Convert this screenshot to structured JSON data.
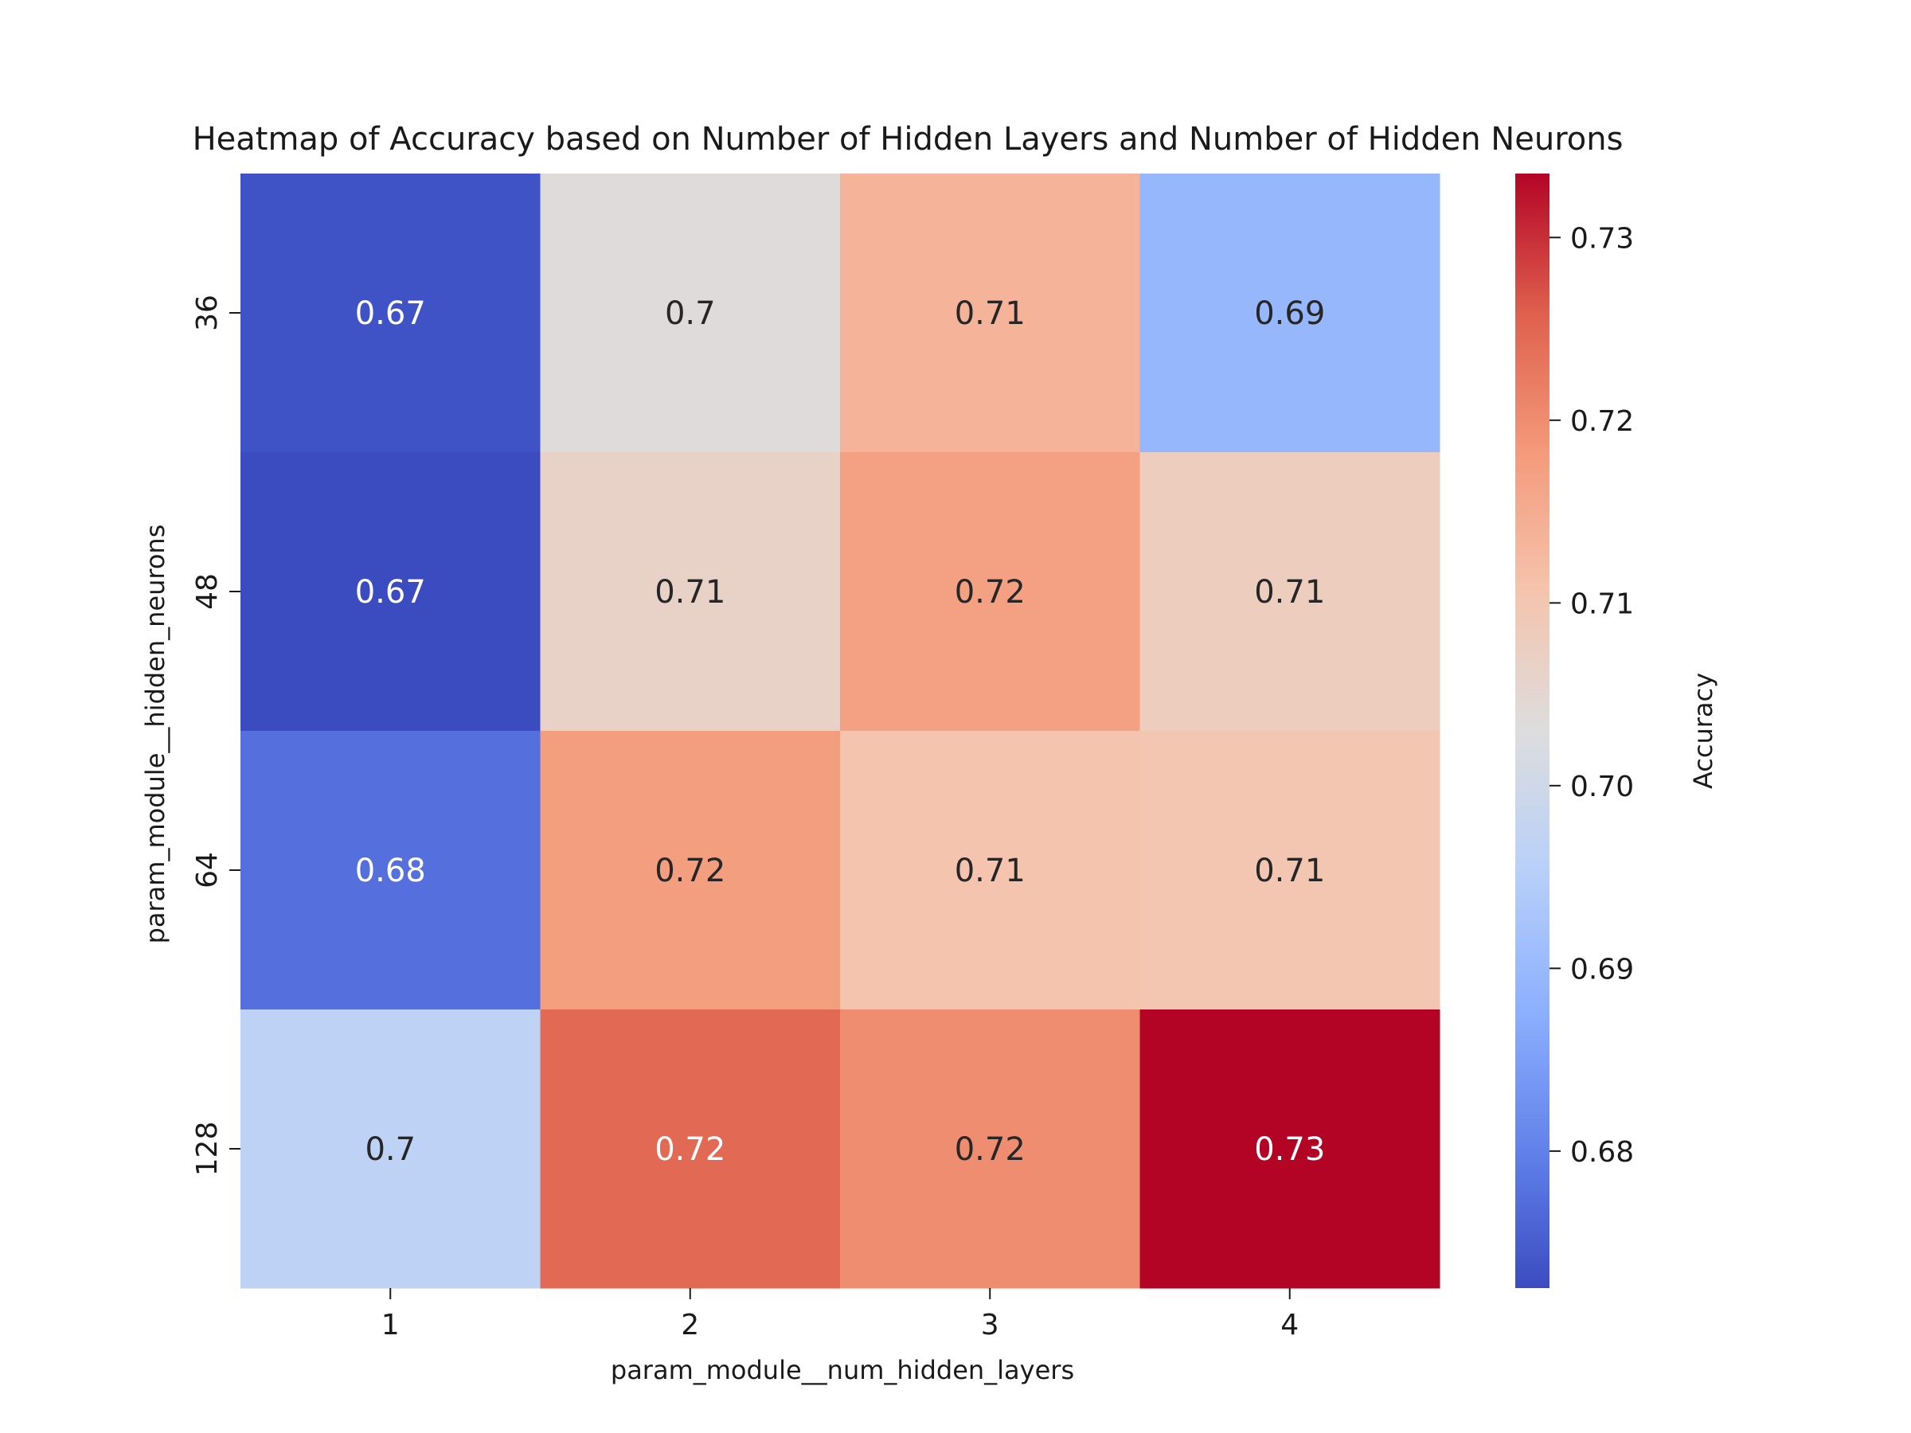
{
  "chart_data": {
    "type": "heatmap",
    "title": "Heatmap of Accuracy based on Number of Hidden Layers and Number of Hidden Neurons",
    "xlabel": "param_module__num_hidden_layers",
    "ylabel": "param_module__hidden_neurons",
    "x_categories": [
      "1",
      "2",
      "3",
      "4"
    ],
    "y_categories": [
      "36",
      "48",
      "64",
      "128"
    ],
    "cell_values": [
      [
        0.6735,
        0.7035,
        0.7135,
        0.6895
      ],
      [
        0.6725,
        0.7065,
        0.717,
        0.708
      ],
      [
        0.6775,
        0.7175,
        0.7105,
        0.71
      ],
      [
        0.6965,
        0.7245,
        0.72,
        0.7335
      ]
    ],
    "cell_labels": [
      [
        "0.67",
        "0.7",
        "0.71",
        "0.69"
      ],
      [
        "0.67",
        "0.71",
        "0.72",
        "0.71"
      ],
      [
        "0.68",
        "0.72",
        "0.71",
        "0.71"
      ],
      [
        "0.7",
        "0.72",
        "0.72",
        "0.73"
      ]
    ],
    "colormap": "coolwarm",
    "colorbar": {
      "label": "Accuracy",
      "range": [
        0.6725,
        0.7335
      ],
      "ticks": [
        0.68,
        0.69,
        0.7,
        0.71,
        0.72,
        0.73
      ],
      "tick_labels": [
        "0.68",
        "0.69",
        "0.70",
        "0.71",
        "0.72",
        "0.73"
      ]
    },
    "grid": false,
    "legend": "colorbar-right"
  }
}
